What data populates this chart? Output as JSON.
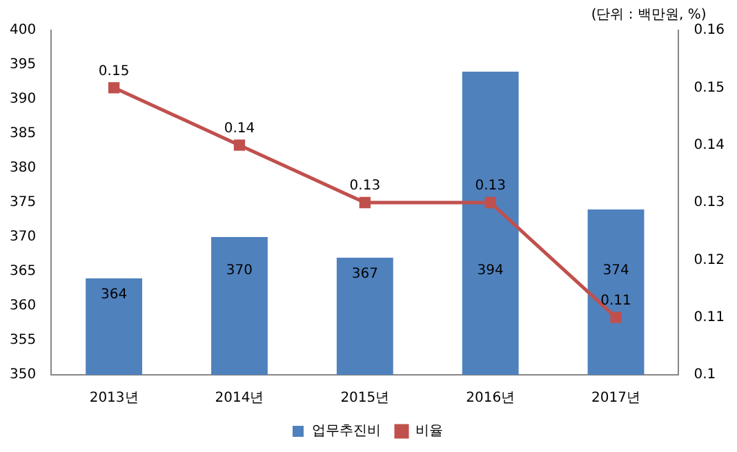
{
  "chart_data": {
    "type": "bar",
    "categories": [
      "2013년",
      "2014년",
      "2015년",
      "2016년",
      "2017년"
    ],
    "series": [
      {
        "name": "업무추진비",
        "color": "#4f81bd",
        "values": [
          364,
          370,
          367,
          394,
          374
        ]
      },
      {
        "name": "비율",
        "type": "line",
        "axis": "y2",
        "color": "#c0504d",
        "values": [
          0.15,
          0.14,
          0.13,
          0.13,
          0.11
        ]
      }
    ],
    "ylim": [
      350,
      400
    ],
    "yticks": [
      350,
      355,
      360,
      365,
      370,
      375,
      380,
      385,
      390,
      395,
      400
    ],
    "y2lim": [
      0.1,
      0.16
    ],
    "y2ticks": [
      0.1,
      0.11,
      0.12,
      0.13,
      0.14,
      0.15,
      0.16
    ],
    "data_labels": true,
    "legend": "bottom",
    "grid": false,
    "marker": "square",
    "line_style": "solid",
    "annotations": [
      "(단위 : 백만원, %)"
    ]
  }
}
